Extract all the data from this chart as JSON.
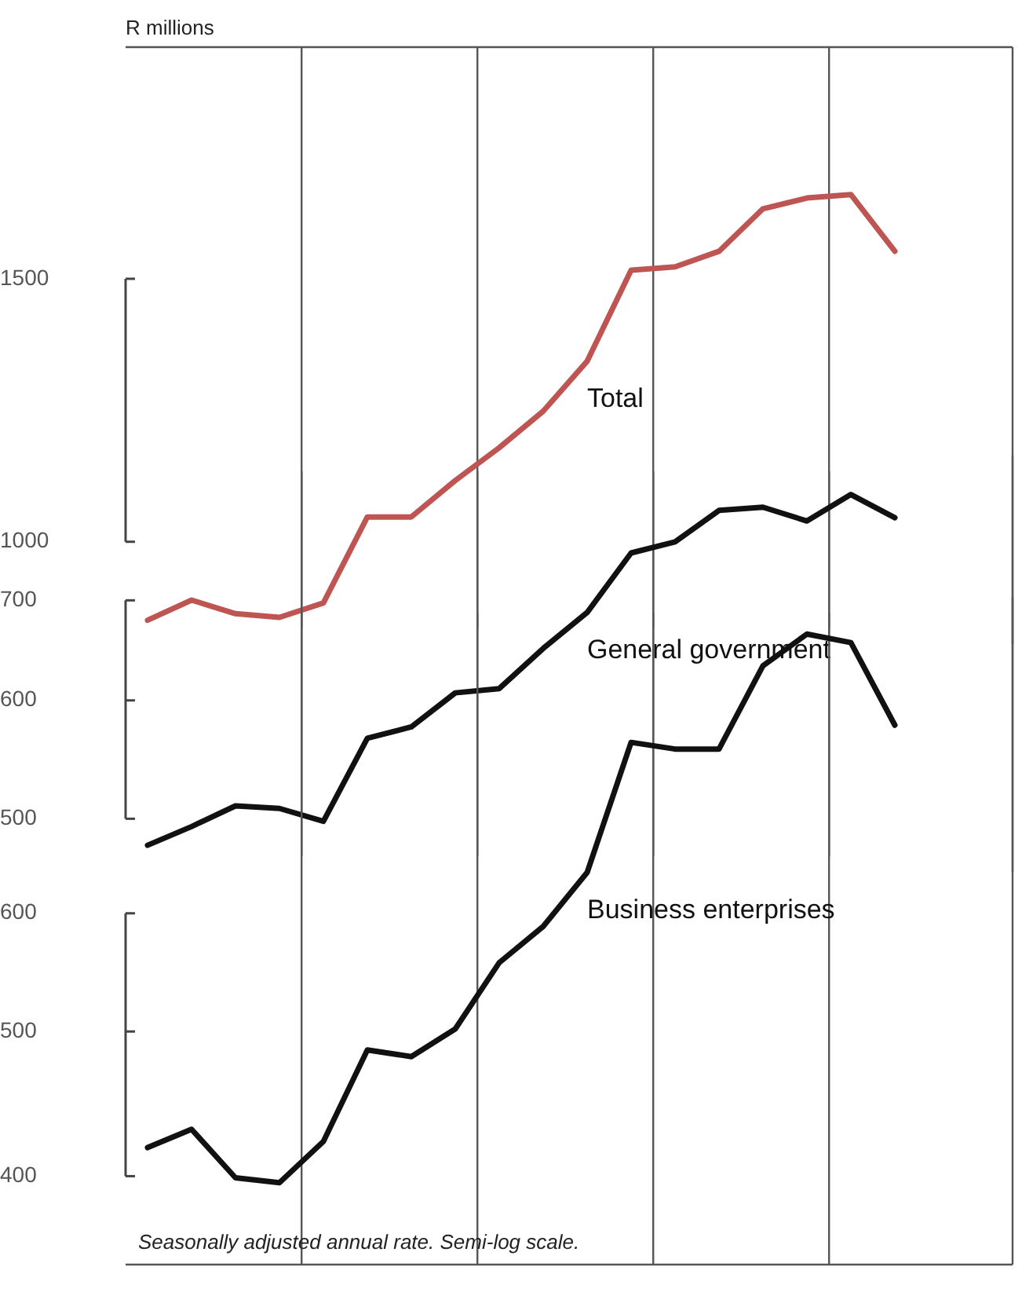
{
  "chart_data": [
    {
      "type": "line",
      "ylabel": "R millions",
      "categories": [
        null,
        null,
        null,
        null,
        null,
        null,
        null,
        null,
        null,
        null,
        null,
        null,
        null,
        null,
        null,
        null,
        null,
        null
      ],
      "series": [
        {
          "name": "Total",
          "color": "#bf5552",
          "values": [
            886,
            914,
            895,
            890,
            910,
            1039,
            1039,
            1099,
            1156,
            1223,
            1321,
            1520,
            1528,
            1565,
            1671,
            1699,
            1708,
            1565
          ]
        }
      ],
      "log": true,
      "ylim": [
        875,
        2144
      ],
      "yticks": [
        1000,
        1500
      ],
      "grid": "x",
      "tick_labels": "y",
      "marker": "none",
      "line_style": "solid"
    },
    {
      "type": "line",
      "categories": [
        null,
        null,
        null,
        null,
        null,
        null,
        null,
        null,
        null,
        null,
        null,
        null,
        null,
        null,
        null,
        null,
        null,
        null
      ],
      "series": [
        {
          "name": "General government",
          "color": "#111111",
          "values": [
            480,
            494,
            510,
            508,
            498,
            566,
            576,
            607,
            611,
            650,
            687,
            753,
            766,
            804,
            808,
            791,
            824,
            795
          ]
        }
      ],
      "log": true,
      "ylim": [
        472,
        854
      ],
      "yticks": [
        500,
        600,
        700
      ],
      "grid": "x",
      "tick_labels": "y",
      "marker": "none",
      "line_style": "solid"
    },
    {
      "type": "line",
      "annotations": [
        "Seasonally adjusted annual rate. Semi-log scale."
      ],
      "categories": [
        null,
        null,
        null,
        null,
        null,
        null,
        null,
        null,
        null,
        null,
        null,
        null,
        null,
        null,
        null,
        null,
        null,
        null
      ],
      "series": [
        {
          "name": "Business enterprises",
          "color": "#111111",
          "values": [
            418,
            430,
            399,
            396,
            422,
            486,
            481,
            502,
            556,
            588,
            639,
            781,
            773,
            773,
            879,
            923,
            911,
            802
          ]
        }
      ],
      "log": true,
      "ylim": [
        349,
        954
      ],
      "yticks": [
        400,
        500,
        600
      ],
      "grid": "x",
      "tick_labels": "y",
      "marker": "none",
      "line_style": "solid"
    }
  ]
}
